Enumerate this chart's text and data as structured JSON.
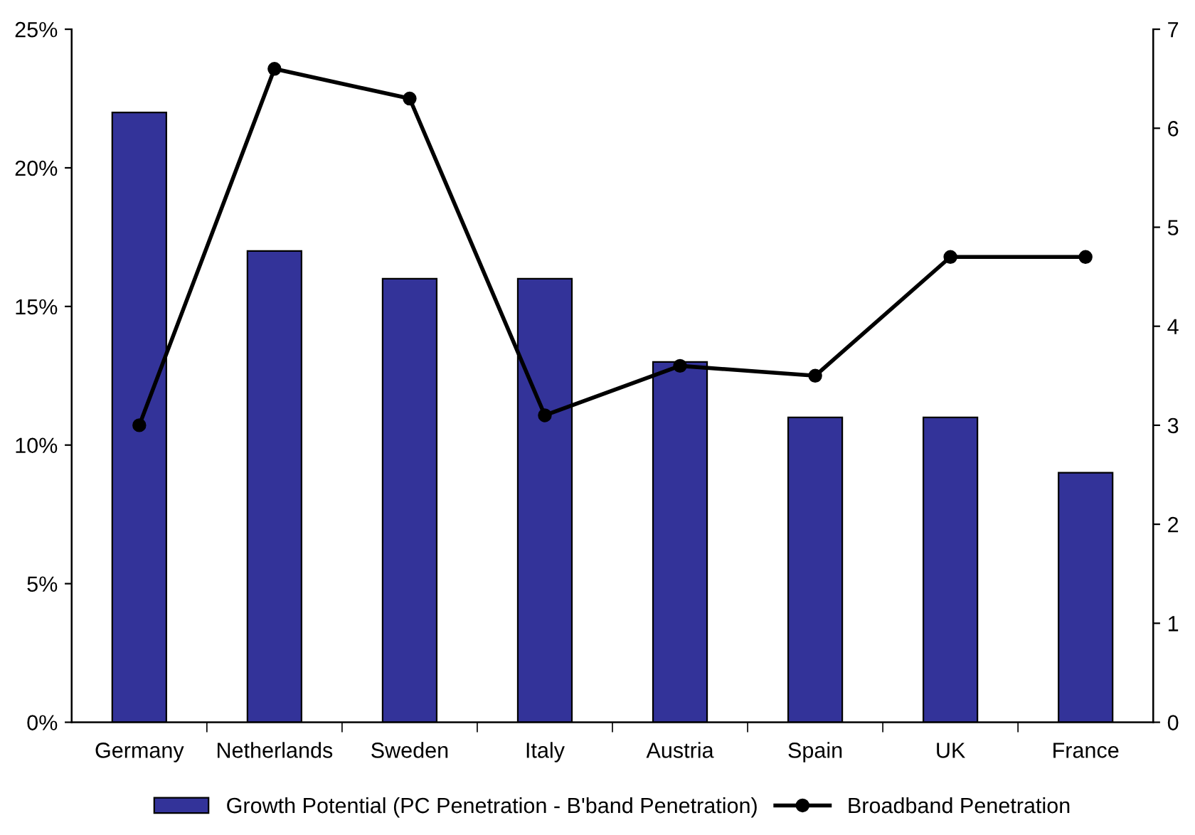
{
  "chart_data": {
    "type": "bar",
    "categories": [
      "Germany",
      "Netherlands",
      "Sweden",
      "Italy",
      "Austria",
      "Spain",
      "UK",
      "France"
    ],
    "series": [
      {
        "name": "Growth Potential (PC Penetration - B'band Penetration)",
        "color": "#333399",
        "values": [
          22,
          17,
          16,
          16,
          13,
          11,
          11,
          9
        ]
      },
      {
        "name": "Broadband Penetration",
        "type": "line",
        "axis": "y2",
        "color": "#000000",
        "marker": "circle",
        "values": [
          3.0,
          6.6,
          6.3,
          3.1,
          3.6,
          3.5,
          4.7,
          4.7
        ]
      }
    ],
    "ylim": [
      0,
      25
    ],
    "yticks": [
      {
        "value": 0,
        "label": "0%"
      },
      {
        "value": 5,
        "label": "5%"
      },
      {
        "value": 10,
        "label": "10%"
      },
      {
        "value": 15,
        "label": "15%"
      },
      {
        "value": 20,
        "label": "20%"
      },
      {
        "value": 25,
        "label": "25%"
      }
    ],
    "y2lim": [
      0,
      7
    ],
    "y2ticks": [
      0,
      1,
      2,
      3,
      4,
      5,
      6,
      7
    ],
    "grid": false,
    "legend": "bottom"
  }
}
